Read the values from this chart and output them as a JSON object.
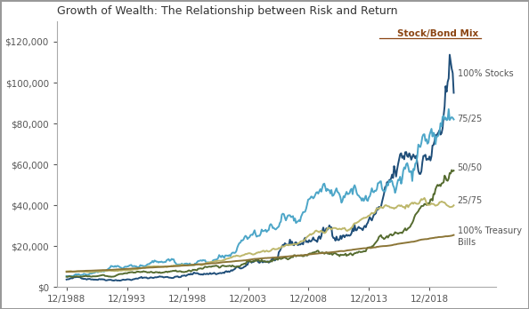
{
  "title": "Growth of Wealth: The Relationship between Risk and Return",
  "legend_title": "Stock/Bond Mix",
  "series_labels": [
    "100% Stocks",
    "75/25",
    "50/50",
    "25/75",
    "100% Treasury\nBills"
  ],
  "series_colors": [
    "#1f4e79",
    "#4da6c8",
    "#556b2f",
    "#bdb76b",
    "#8b7536"
  ],
  "series_linewidths": [
    1.4,
    1.4,
    1.4,
    1.4,
    1.4
  ],
  "start_year": 1988,
  "end_year": 2020,
  "ylim": [
    0,
    130000
  ],
  "yticks": [
    0,
    20000,
    40000,
    60000,
    80000,
    100000,
    120000
  ],
  "xticks_years": [
    1988,
    1993,
    1998,
    2003,
    2008,
    2013,
    2018
  ],
  "initial_value": 10000,
  "background_color": "#ffffff",
  "border_color": "#aaaaaa",
  "title_color": "#333333",
  "label_color": "#555555",
  "legend_title_color": "#8B4513"
}
